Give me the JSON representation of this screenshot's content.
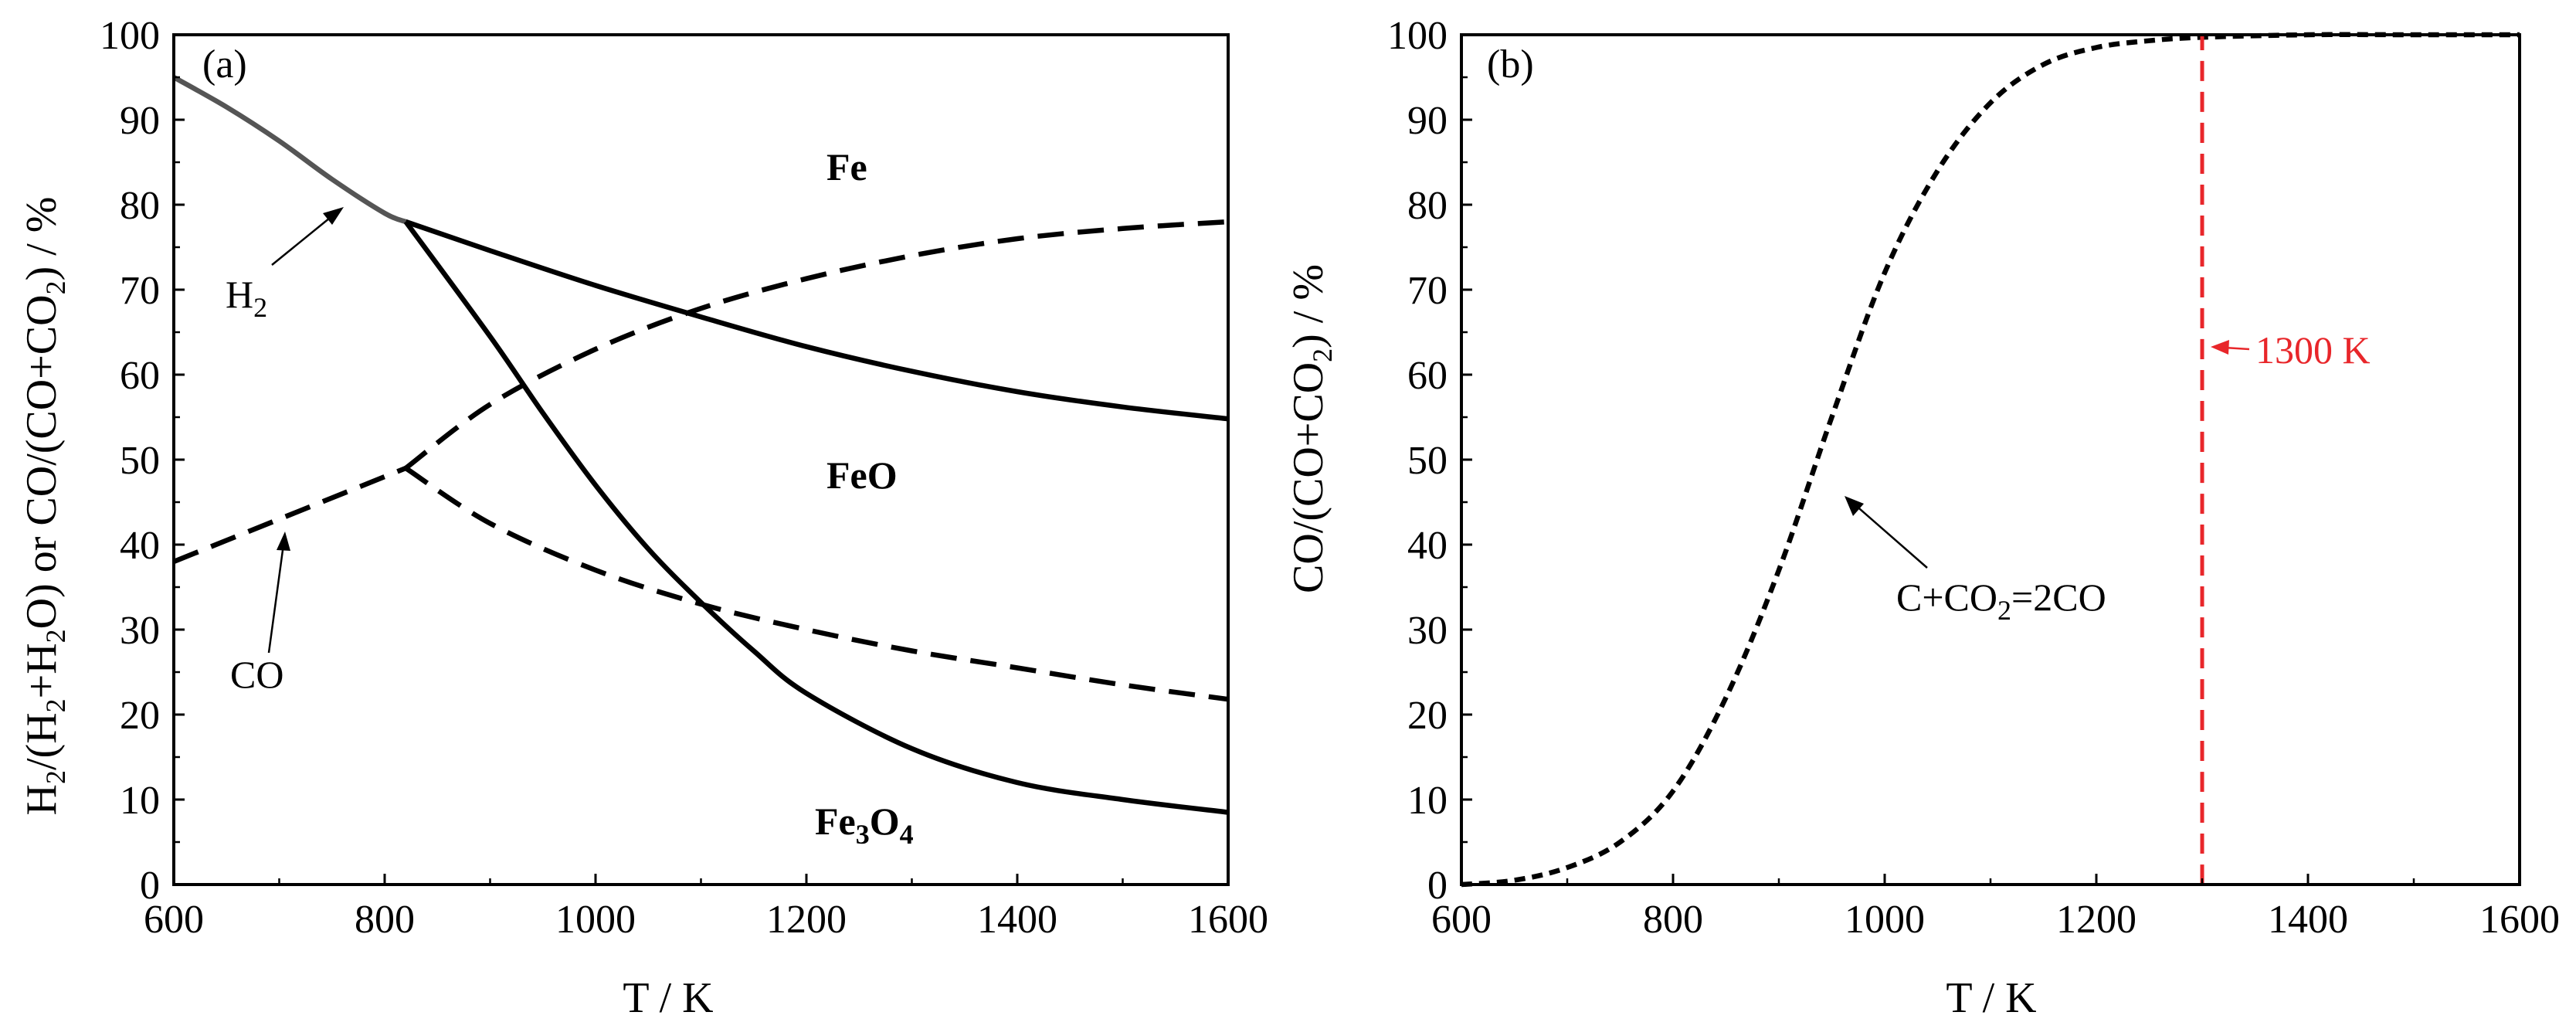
{
  "chart_data": [
    {
      "panel": "(a)",
      "type": "line",
      "xlabel": "T / K",
      "ylabel": "H2/(H2+H2O) or CO/(CO+CO2) / %",
      "xlim": [
        600,
        1600
      ],
      "ylim": [
        0,
        100
      ],
      "xticks": [
        600,
        800,
        1000,
        1200,
        1400,
        1600
      ],
      "yticks": [
        0,
        10,
        20,
        30,
        40,
        50,
        60,
        70,
        80,
        90,
        100
      ],
      "grid": false,
      "regions": [
        "Fe",
        "FeO",
        "Fe3O4"
      ],
      "annotations": [
        "H2",
        "CO"
      ],
      "series": [
        {
          "label": "H2",
          "style": "solid-gray",
          "color": "#555555",
          "x": [
            600,
            650,
            700,
            750,
            800,
            820
          ],
          "y": [
            95,
            91.5,
            87.5,
            83,
            79,
            78
          ]
        },
        {
          "label": "H2",
          "style": "solid",
          "color": "#000000",
          "x": [
            820,
            900,
            1000,
            1100,
            1200,
            1300,
            1400,
            1500,
            1600
          ],
          "y": [
            78,
            74.6,
            70.5,
            66.8,
            63.3,
            60.4,
            58,
            56.2,
            54.8
          ]
        },
        {
          "label": "H2",
          "style": "solid",
          "color": "#000000",
          "x": [
            820,
            900,
            950,
            1000,
            1050,
            1100,
            1150,
            1200,
            1300,
            1400,
            1500,
            1600
          ],
          "y": [
            78,
            64.5,
            55.5,
            47,
            39.5,
            33.2,
            27.5,
            22.5,
            16,
            12,
            10,
            8.5
          ]
        },
        {
          "label": "CO",
          "style": "dashed",
          "color": "#000000",
          "x": [
            600,
            650,
            700,
            750,
            800,
            820
          ],
          "y": [
            38,
            40.5,
            43,
            45.5,
            48,
            49
          ]
        },
        {
          "label": "CO",
          "style": "dashed",
          "color": "#000000",
          "x": [
            820,
            900,
            1000,
            1100,
            1200,
            1300,
            1400,
            1500,
            1600
          ],
          "y": [
            49,
            56.5,
            63,
            67.8,
            71.3,
            74,
            76,
            77.2,
            78
          ]
        },
        {
          "label": "CO",
          "style": "dashed",
          "color": "#000000",
          "x": [
            820,
            900,
            1000,
            1100,
            1200,
            1300,
            1400,
            1500,
            1600
          ],
          "y": [
            49,
            42.5,
            37,
            33,
            30,
            27.5,
            25.5,
            23.5,
            21.8
          ]
        }
      ]
    },
    {
      "panel": "(b)",
      "type": "line",
      "xlabel": "T / K",
      "ylabel": "CO/(CO+CO2) / %",
      "xlim": [
        600,
        1600
      ],
      "ylim": [
        0,
        100
      ],
      "xticks": [
        600,
        800,
        1000,
        1200,
        1400,
        1600
      ],
      "yticks": [
        0,
        10,
        20,
        30,
        40,
        50,
        60,
        70,
        80,
        90,
        100
      ],
      "grid": false,
      "annotations": [
        "C+CO2=2CO",
        "1300 K"
      ],
      "series": [
        {
          "label": "C+CO2=2CO",
          "style": "dotted",
          "color": "#000000",
          "x": [
            600,
            650,
            700,
            750,
            800,
            850,
            900,
            950,
            1000,
            1050,
            1100,
            1150,
            1200,
            1250,
            1300,
            1400,
            1500,
            1600
          ],
          "y": [
            0,
            0.5,
            2,
            5,
            11,
            22,
            37,
            55,
            72,
            84,
            92,
            96.5,
            98.5,
            99.3,
            99.7,
            100,
            100,
            100
          ]
        },
        {
          "label": "1300 K",
          "style": "dashed-red",
          "color": "#e8262a",
          "x": [
            1300,
            1300
          ],
          "y": [
            0,
            100
          ]
        }
      ]
    }
  ],
  "labels": {
    "a": {
      "tag": "(a)",
      "xlabel": "T / K",
      "ylabel_parts": [
        "H",
        "2",
        "/(H",
        "2",
        "+H",
        "2",
        "O) or CO/(CO+CO",
        "2",
        ") / %"
      ],
      "fe": "Fe",
      "feo": "FeO",
      "fe3o4_parts": [
        "Fe",
        "3",
        "O",
        "4"
      ],
      "h2_parts": [
        "H",
        "2"
      ],
      "co": "CO"
    },
    "b": {
      "tag": "(b)",
      "xlabel": "T / K",
      "ylabel_parts": [
        "CO/(CO+CO",
        "2",
        ") / %"
      ],
      "reaction_parts": [
        "C+CO",
        "2",
        "=2CO"
      ],
      "temp_label": "1300 K"
    }
  }
}
